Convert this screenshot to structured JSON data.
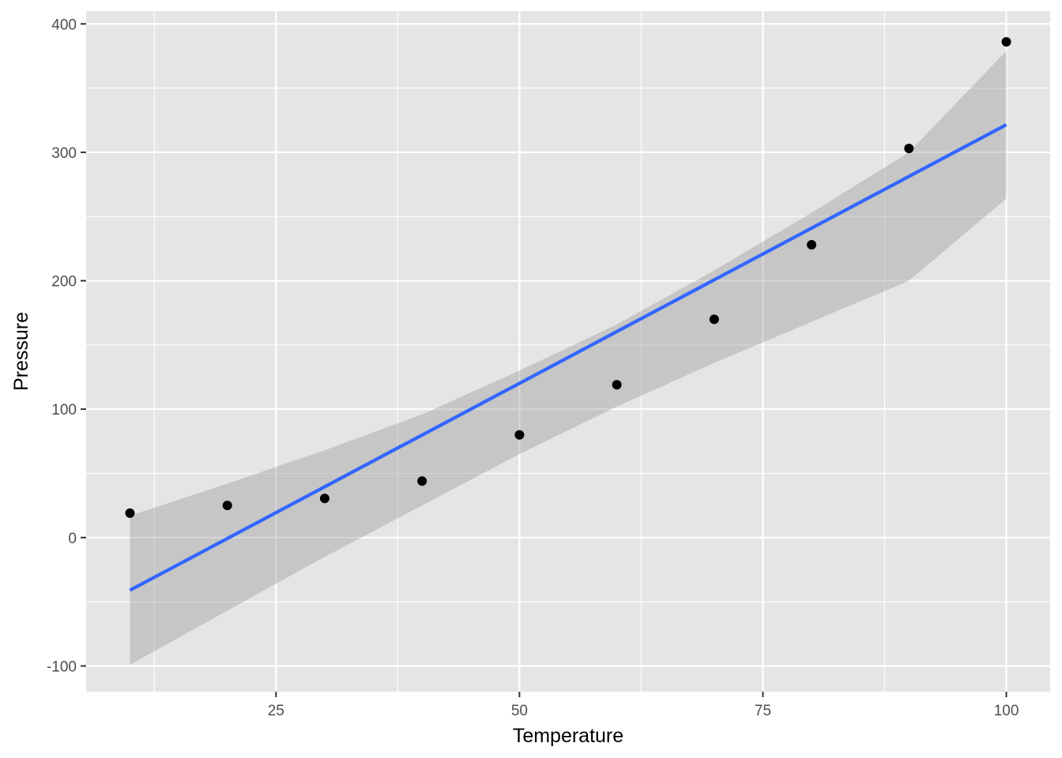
{
  "chart_data": {
    "type": "scatter",
    "xlabel": "Temperature",
    "ylabel": "Pressure",
    "xlim": [
      5.5,
      104.5
    ],
    "ylim": [
      -120,
      410
    ],
    "x_ticks": [
      25,
      50,
      75,
      100
    ],
    "y_ticks": [
      -100,
      0,
      100,
      200,
      300,
      400
    ],
    "grid": true,
    "legend": "none",
    "series": [
      {
        "type": "scatter",
        "x": [
          10,
          20,
          30,
          40,
          50,
          60,
          70,
          80,
          90,
          100
        ],
        "y": [
          19,
          25,
          30.5,
          44,
          80,
          119,
          170,
          228,
          303,
          386
        ]
      }
    ],
    "fit": {
      "method": "linear regression",
      "x": [
        10,
        100
      ],
      "y": [
        -41,
        321.5
      ]
    },
    "confidence_band": {
      "x": [
        10,
        20,
        30,
        40,
        50,
        60,
        70,
        80,
        90,
        100
      ],
      "lower": [
        -99,
        -57,
        -15,
        25,
        65,
        102,
        136,
        168,
        200,
        264
      ],
      "upper": [
        17,
        42,
        68,
        96,
        130,
        166,
        208,
        253,
        300,
        379
      ]
    },
    "colors": {
      "panel": "#e5e5e5",
      "grid": "#ffffff",
      "points": "#000000",
      "fit_line": "#3366ff",
      "band": "#999999"
    }
  }
}
